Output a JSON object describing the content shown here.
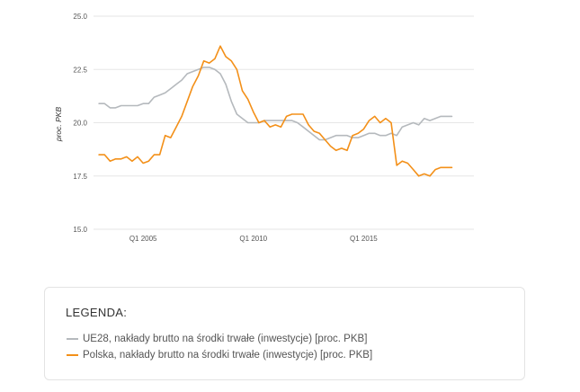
{
  "chart_data": {
    "type": "line",
    "ylabel": "proc. PKB",
    "ylim": [
      15.0,
      25.0
    ],
    "yticks": [
      "25.0",
      "22.5",
      "20.0",
      "17.5",
      "15.0"
    ],
    "ytick_values": [
      25.0,
      22.5,
      20.0,
      17.5,
      15.0
    ],
    "xlim": [
      2002.75,
      2020.0
    ],
    "xtick_labels": [
      "Q1 2005",
      "Q1 2010",
      "Q1 2015"
    ],
    "xtick_values": [
      2005.0,
      2010.0,
      2015.0
    ],
    "grid": true,
    "x": [
      2003.0,
      2003.25,
      2003.5,
      2003.75,
      2004.0,
      2004.25,
      2004.5,
      2004.75,
      2005.0,
      2005.25,
      2005.5,
      2005.75,
      2006.0,
      2006.25,
      2006.5,
      2006.75,
      2007.0,
      2007.25,
      2007.5,
      2007.75,
      2008.0,
      2008.25,
      2008.5,
      2008.75,
      2009.0,
      2009.25,
      2009.5,
      2009.75,
      2010.0,
      2010.25,
      2010.5,
      2010.75,
      2011.0,
      2011.25,
      2011.5,
      2011.75,
      2012.0,
      2012.25,
      2012.5,
      2012.75,
      2013.0,
      2013.25,
      2013.5,
      2013.75,
      2014.0,
      2014.25,
      2014.5,
      2014.75,
      2015.0,
      2015.25,
      2015.5,
      2015.75,
      2016.0,
      2016.25,
      2016.5,
      2016.75,
      2017.0,
      2017.25,
      2017.5,
      2017.75,
      2018.0,
      2018.25,
      2018.5,
      2018.75,
      2019.0
    ],
    "series": [
      {
        "name": "UE28, nakłady brutto na środki trwałe (inwestycje) [proc. PKB]",
        "color": "#b5b9bd",
        "values": [
          20.9,
          20.9,
          20.7,
          20.7,
          20.8,
          20.8,
          20.8,
          20.8,
          20.9,
          20.9,
          21.2,
          21.3,
          21.4,
          21.6,
          21.8,
          22.0,
          22.3,
          22.4,
          22.5,
          22.6,
          22.6,
          22.5,
          22.3,
          21.8,
          21.0,
          20.4,
          20.2,
          20.0,
          20.0,
          20.0,
          20.1,
          20.1,
          20.1,
          20.1,
          20.1,
          20.1,
          20.0,
          19.8,
          19.6,
          19.4,
          19.2,
          19.2,
          19.3,
          19.4,
          19.4,
          19.4,
          19.3,
          19.3,
          19.4,
          19.5,
          19.5,
          19.4,
          19.4,
          19.5,
          19.4,
          19.8,
          19.9,
          20.0,
          19.9,
          20.2,
          20.1,
          20.2,
          20.3,
          20.3,
          20.3
        ]
      },
      {
        "name": "Polska, nakłady brutto na środki trwałe (inwestycje) [proc. PKB]",
        "color": "#f39019",
        "values": [
          18.5,
          18.5,
          18.2,
          18.3,
          18.3,
          18.4,
          18.2,
          18.4,
          18.1,
          18.2,
          18.5,
          18.5,
          19.4,
          19.3,
          19.8,
          20.3,
          21.0,
          21.7,
          22.2,
          22.9,
          22.8,
          23.0,
          23.6,
          23.1,
          22.9,
          22.5,
          21.5,
          21.1,
          20.5,
          20.0,
          20.1,
          19.8,
          19.9,
          19.8,
          20.3,
          20.4,
          20.4,
          20.4,
          19.9,
          19.6,
          19.5,
          19.2,
          18.9,
          18.7,
          18.8,
          18.7,
          19.4,
          19.5,
          19.7,
          20.1,
          20.3,
          20.0,
          20.2,
          20.0,
          18.0,
          18.2,
          18.1,
          17.8,
          17.5,
          17.6,
          17.5,
          17.8,
          17.9,
          17.9,
          17.9
        ]
      }
    ],
    "legend_title": "LEGENDA:",
    "legend_position": "bottom"
  }
}
